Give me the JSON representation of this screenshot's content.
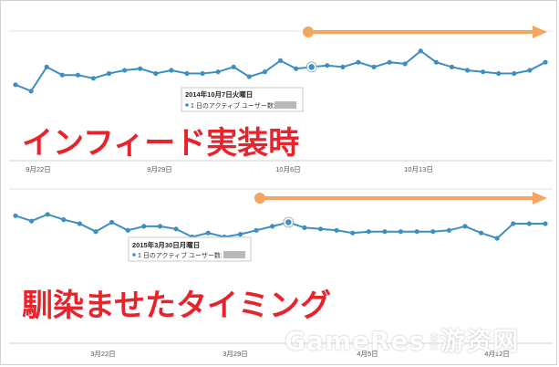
{
  "chart_data": [
    {
      "type": "line",
      "annotation": "インフィード実装時",
      "tooltip": {
        "date": "2014年10月7日火曜日",
        "metric": "1 日のアクティブ ユーザー数:"
      },
      "x_ticks": [
        "9月22日",
        "9月29日",
        "10月6日",
        "10月13日"
      ],
      "series": [
        {
          "values": [
            60,
            56,
            71,
            66,
            66,
            64,
            67,
            69,
            70,
            67,
            69,
            67,
            67,
            68,
            71,
            65,
            68,
            75,
            70,
            71,
            72,
            71,
            74,
            71,
            74,
            73,
            81,
            74,
            71,
            69,
            68,
            67,
            67,
            69,
            74
          ]
        }
      ],
      "highlight_index": 19,
      "line_color": "#3d8fc2",
      "accent_color": "#f4a55e",
      "label_color": "#e8232b"
    },
    {
      "type": "line",
      "annotation": "馴染ませたタイミング",
      "tooltip": {
        "date": "2015年3月30日月曜日",
        "metric": "1 日のアクティブ ユーザー数:"
      },
      "x_ticks": [
        "3月22日",
        "3月29日",
        "4月5日",
        "4月12日"
      ],
      "series": [
        {
          "values": [
            79,
            75,
            80,
            76,
            73,
            67,
            74,
            68,
            71,
            71,
            69,
            63,
            66,
            63,
            65,
            68,
            71,
            74,
            70,
            69,
            68,
            66,
            67,
            67,
            67,
            67,
            67,
            68,
            71,
            66,
            62,
            73,
            73,
            73
          ]
        }
      ],
      "highlight_index": 17,
      "line_color": "#3d8fc2",
      "accent_color": "#f4a55e",
      "label_color": "#e8232b"
    }
  ],
  "watermark": {
    "brand": "GameRes",
    "small": "游戏",
    "cn": "游资网"
  }
}
